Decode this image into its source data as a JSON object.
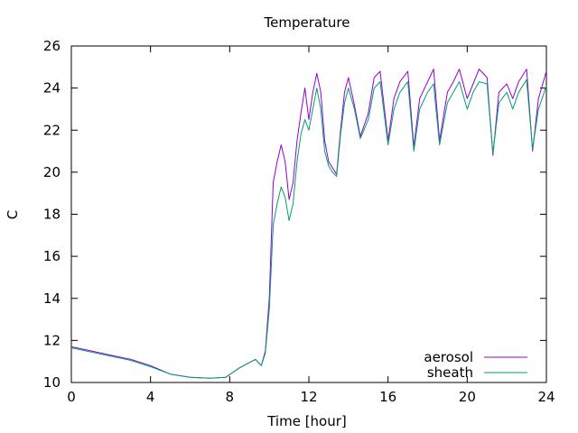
{
  "chart_data": {
    "type": "line",
    "title": "Temperature",
    "xlabel": "Time [hour]",
    "ylabel": "C",
    "xlim": [
      0,
      24
    ],
    "ylim": [
      10,
      26
    ],
    "xticks": [
      0,
      4,
      8,
      12,
      16,
      20,
      24
    ],
    "yticks": [
      10,
      12,
      14,
      16,
      18,
      20,
      22,
      24,
      26
    ],
    "grid": false,
    "legend_position": "bottom-right",
    "series": [
      {
        "name": "aerosol",
        "color": "#9400d3",
        "x": [
          0,
          1,
          2,
          3,
          4,
          5,
          6,
          7,
          7.8,
          8.5,
          9.3,
          9.6,
          9.8,
          10.0,
          10.2,
          10.4,
          10.6,
          10.8,
          11.0,
          11.2,
          11.4,
          11.6,
          11.8,
          12.0,
          12.2,
          12.4,
          12.6,
          12.8,
          13.0,
          13.2,
          13.4,
          13.6,
          13.8,
          14.0,
          14.3,
          14.6,
          15.0,
          15.3,
          15.6,
          16.0,
          16.3,
          16.6,
          17.0,
          17.3,
          17.6,
          18.0,
          18.3,
          18.6,
          19.0,
          19.3,
          19.6,
          20.0,
          20.3,
          20.6,
          21.0,
          21.3,
          21.6,
          22.0,
          22.3,
          22.6,
          23.0,
          23.3,
          23.6,
          24.0
        ],
        "y": [
          11.7,
          11.5,
          11.3,
          11.1,
          10.8,
          10.4,
          10.25,
          10.2,
          10.25,
          10.7,
          11.1,
          10.8,
          11.5,
          14.0,
          19.5,
          20.5,
          21.3,
          20.5,
          18.7,
          19.5,
          21.5,
          22.8,
          24.0,
          22.5,
          23.8,
          24.7,
          23.8,
          21.5,
          20.5,
          20.2,
          19.9,
          22.0,
          23.8,
          24.5,
          23.2,
          21.7,
          22.8,
          24.5,
          24.8,
          21.5,
          23.5,
          24.3,
          24.8,
          21.2,
          23.5,
          24.3,
          24.9,
          21.5,
          23.8,
          24.3,
          24.9,
          23.5,
          24.2,
          24.9,
          24.5,
          20.8,
          23.8,
          24.2,
          23.5,
          24.3,
          24.9,
          21.0,
          23.5,
          24.8
        ]
      },
      {
        "name": "sheath",
        "color": "#009e73",
        "x": [
          0,
          1,
          2,
          3,
          4,
          5,
          6,
          7,
          7.8,
          8.5,
          9.3,
          9.6,
          9.8,
          10.0,
          10.2,
          10.4,
          10.6,
          10.8,
          11.0,
          11.2,
          11.4,
          11.6,
          11.8,
          12.0,
          12.2,
          12.4,
          12.6,
          12.8,
          13.0,
          13.2,
          13.4,
          13.6,
          13.8,
          14.0,
          14.3,
          14.6,
          15.0,
          15.3,
          15.6,
          16.0,
          16.3,
          16.6,
          17.0,
          17.3,
          17.6,
          18.0,
          18.3,
          18.6,
          19.0,
          19.3,
          19.6,
          20.0,
          20.3,
          20.6,
          21.0,
          21.3,
          21.6,
          22.0,
          22.3,
          22.6,
          23.0,
          23.3,
          23.6,
          24.0
        ],
        "y": [
          11.65,
          11.45,
          11.25,
          11.05,
          10.75,
          10.4,
          10.25,
          10.2,
          10.25,
          10.7,
          11.1,
          10.8,
          11.4,
          13.5,
          17.5,
          18.5,
          19.3,
          18.8,
          17.7,
          18.5,
          20.5,
          21.8,
          22.5,
          22.0,
          23.0,
          24.0,
          23.0,
          21.0,
          20.3,
          20.0,
          19.8,
          21.8,
          23.3,
          24.0,
          23.0,
          21.6,
          22.5,
          24.0,
          24.3,
          21.3,
          23.0,
          23.8,
          24.3,
          21.0,
          23.0,
          23.8,
          24.2,
          21.3,
          23.3,
          23.8,
          24.3,
          23.0,
          23.8,
          24.3,
          24.2,
          20.9,
          23.3,
          23.8,
          23.0,
          23.8,
          24.4,
          21.1,
          23.0,
          24.1
        ]
      }
    ]
  }
}
